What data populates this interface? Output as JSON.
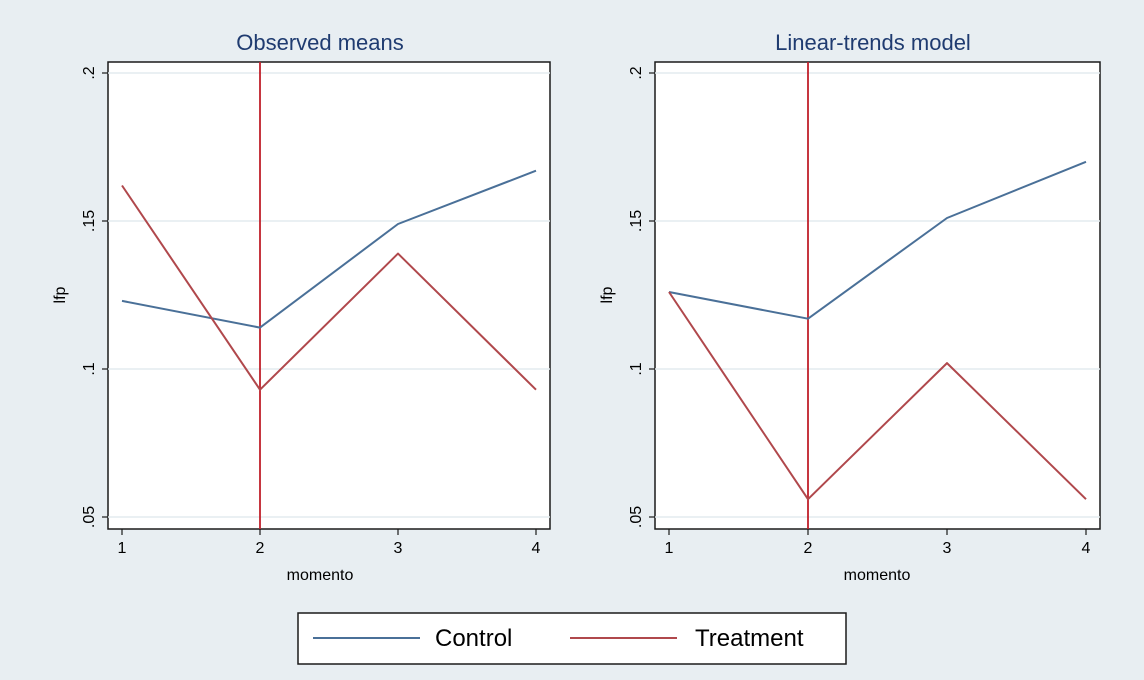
{
  "legend": {
    "items": [
      {
        "label": "Control",
        "color": "#4a7098"
      },
      {
        "label": "Treatment",
        "color": "#b0484c"
      }
    ],
    "placement": "bottom-center"
  },
  "chart_data": [
    {
      "type": "line",
      "title": "Observed means",
      "xlabel": "momento",
      "ylabel": "lfp",
      "x": [
        1,
        2,
        3,
        4
      ],
      "x_ticks": [
        "1",
        "2",
        "3",
        "4"
      ],
      "y_ticks": [
        ".05",
        ".1",
        ".15",
        ".2"
      ],
      "ylim": [
        0.05,
        0.2
      ],
      "xlim": [
        1,
        4
      ],
      "grid": true,
      "vline_x": 2,
      "vline_color": "#c0202a",
      "series": [
        {
          "name": "Control",
          "color": "#4a7098",
          "values": [
            0.123,
            0.114,
            0.149,
            0.167
          ]
        },
        {
          "name": "Treatment",
          "color": "#b0484c",
          "values": [
            0.162,
            0.093,
            0.139,
            0.093
          ]
        }
      ]
    },
    {
      "type": "line",
      "title": "Linear-trends model",
      "xlabel": "momento",
      "ylabel": "lfp",
      "x": [
        1,
        2,
        3,
        4
      ],
      "x_ticks": [
        "1",
        "2",
        "3",
        "4"
      ],
      "y_ticks": [
        ".05",
        ".1",
        ".15",
        ".2"
      ],
      "ylim": [
        0.05,
        0.2
      ],
      "xlim": [
        1,
        4
      ],
      "grid": true,
      "vline_x": 2,
      "vline_color": "#c0202a",
      "series": [
        {
          "name": "Control",
          "color": "#4a7098",
          "values": [
            0.126,
            0.117,
            0.151,
            0.17
          ]
        },
        {
          "name": "Treatment",
          "color": "#b0484c",
          "values": [
            0.126,
            0.056,
            0.102,
            0.056
          ]
        }
      ]
    }
  ]
}
